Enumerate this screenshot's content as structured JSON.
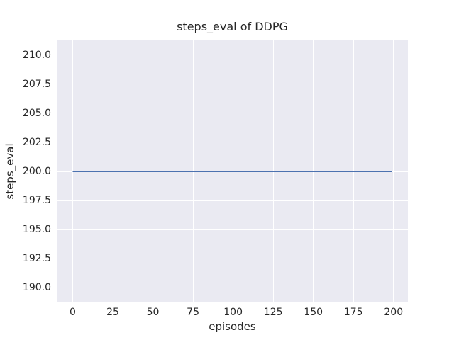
{
  "figure": {
    "background": "#ffffff",
    "text_color": "#262626"
  },
  "chart_data": {
    "type": "line",
    "title": "steps_eval of DDPG",
    "xlabel": "episodes",
    "ylabel": "steps_eval",
    "xlim": [
      -9.95,
      208.95
    ],
    "ylim": [
      188.75,
      211.25
    ],
    "xticks": [
      0,
      25,
      50,
      75,
      100,
      125,
      150,
      175,
      200
    ],
    "xtick_labels": [
      "0",
      "25",
      "50",
      "75",
      "100",
      "125",
      "150",
      "175",
      "200"
    ],
    "yticks": [
      190.0,
      192.5,
      195.0,
      197.5,
      200.0,
      202.5,
      205.0,
      207.5,
      210.0
    ],
    "ytick_labels": [
      "190.0",
      "192.5",
      "195.0",
      "197.5",
      "200.0",
      "202.5",
      "205.0",
      "207.5",
      "210.0"
    ],
    "grid": true,
    "legend": false,
    "style": {
      "axes_background": "#eaeaf2",
      "grid_color": "#ffffff",
      "line_width": 2
    },
    "series": [
      {
        "name": "DDPG",
        "color": "#4c72b0",
        "x": [
          0,
          199
        ],
        "y": [
          200,
          200
        ]
      }
    ]
  }
}
